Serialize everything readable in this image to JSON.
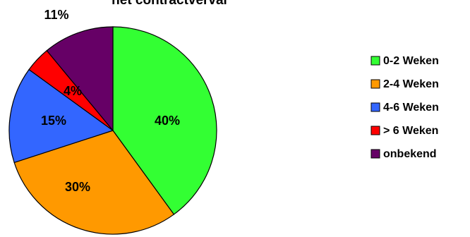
{
  "chart_data": {
    "type": "pie",
    "title": "het contractverval",
    "labels": [
      "0-2 Weken",
      "2-4 Weken",
      "4-6 Weken",
      "> 6 Weken",
      "onbekend"
    ],
    "values": [
      40,
      30,
      15,
      4,
      11
    ],
    "value_labels": [
      "40%",
      "30%",
      "15%",
      "4%",
      "11%"
    ],
    "colors": [
      "#33ff33",
      "#ff9900",
      "#3366ff",
      "#ff0000",
      "#660066"
    ],
    "legend_position": "right",
    "start_angle_deg": 0,
    "direction": "clockwise"
  }
}
